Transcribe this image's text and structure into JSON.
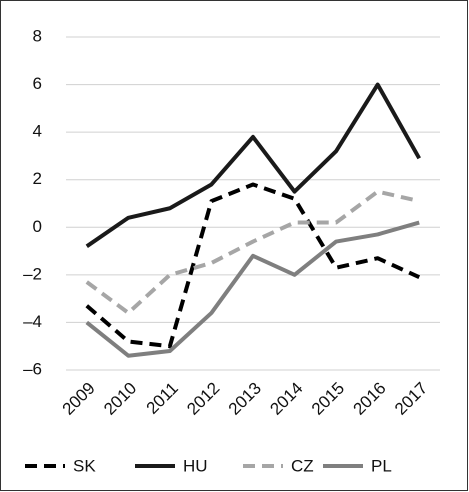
{
  "chart_data": {
    "type": "line",
    "categories": [
      "2009",
      "2010",
      "2011",
      "2012",
      "2013",
      "2014",
      "2015",
      "2016",
      "2017"
    ],
    "series": [
      {
        "name": "SK",
        "color": "#000000",
        "style": "dashed",
        "values": [
          -3.3,
          -4.8,
          -5.0,
          1.1,
          1.8,
          1.2,
          -1.7,
          -1.3,
          -2.1
        ]
      },
      {
        "name": "HU",
        "color": "#1a1a1a",
        "style": "solid",
        "values": [
          -0.8,
          0.4,
          0.8,
          1.8,
          3.8,
          1.5,
          3.2,
          6.0,
          2.9
        ]
      },
      {
        "name": "CZ",
        "color": "#a6a6a6",
        "style": "dashed",
        "values": [
          -2.3,
          -3.6,
          -2.0,
          -1.5,
          -0.6,
          0.2,
          0.2,
          1.5,
          1.1
        ]
      },
      {
        "name": "PL",
        "color": "#7f7f7f",
        "style": "solid",
        "values": [
          -4.0,
          -5.4,
          -5.2,
          -3.6,
          -1.2,
          -2.0,
          -0.6,
          -0.3,
          0.2
        ]
      }
    ],
    "ylim": [
      -6,
      8
    ],
    "yticks": [
      {
        "value": -6,
        "label": "–6"
      },
      {
        "value": -4,
        "label": "–4"
      },
      {
        "value": -2,
        "label": "–2"
      },
      0,
      2,
      4,
      6,
      8
    ],
    "grid": true,
    "legend": "bottom"
  }
}
